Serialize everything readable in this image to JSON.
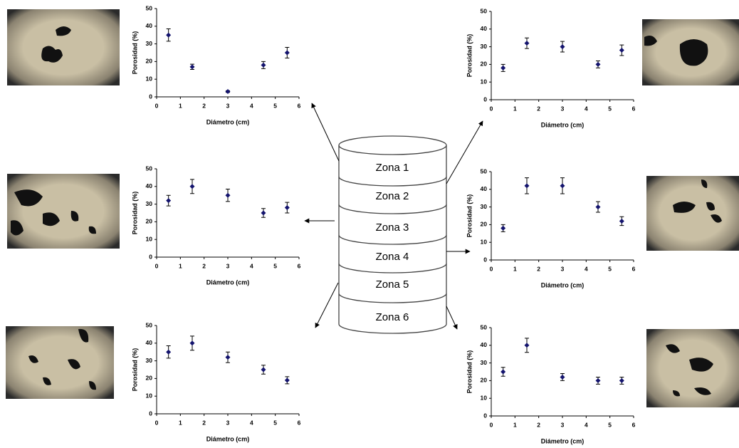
{
  "chart_data": [
    {
      "type": "scatter",
      "x_label": "Diámetro (cm)",
      "y_label": "Porosidad (%)",
      "color": "#14146e",
      "x": [
        0.5,
        1.5,
        3,
        4.5,
        5.5
      ],
      "values": [
        35,
        17,
        3,
        18,
        25
      ],
      "errors": [
        3.5,
        1.5,
        0.5,
        2,
        3
      ],
      "xlim": [
        0,
        6
      ],
      "xticks": [
        0,
        1,
        2,
        3,
        4,
        5,
        6
      ],
      "ylim": [
        0,
        50
      ],
      "yticks": [
        0,
        10,
        20,
        30,
        40,
        50
      ]
    },
    {
      "type": "scatter",
      "x_label": "Diámetro (cm)",
      "y_label": "Porosidad (%)",
      "color": "#14146e",
      "x": [
        0.5,
        1.5,
        3,
        4.5,
        5.5
      ],
      "values": [
        18,
        32,
        30,
        20,
        28
      ],
      "errors": [
        2,
        3,
        3,
        2,
        3
      ],
      "xlim": [
        0,
        6
      ],
      "xticks": [
        0,
        1,
        2,
        3,
        4,
        5,
        6
      ],
      "ylim": [
        0,
        50
      ],
      "yticks": [
        0,
        10,
        20,
        30,
        40,
        50
      ]
    },
    {
      "type": "scatter",
      "x_label": "Diámetro (cm)",
      "y_label": "Porosidad (%)",
      "color": "#14146e",
      "x": [
        0.5,
        1.5,
        3,
        4.5,
        5.5
      ],
      "values": [
        32,
        40,
        35,
        25,
        28
      ],
      "errors": [
        3,
        4,
        3.5,
        2.5,
        3
      ],
      "xlim": [
        0,
        6
      ],
      "xticks": [
        0,
        1,
        2,
        3,
        4,
        5,
        6
      ],
      "ylim": [
        0,
        50
      ],
      "yticks": [
        0,
        10,
        20,
        30,
        40,
        50
      ]
    },
    {
      "type": "scatter",
      "x_label": "Diámetro (cm)",
      "y_label": "Porosidad (%)",
      "color": "#14146e",
      "x": [
        0.5,
        1.5,
        3,
        4.5,
        5.5
      ],
      "values": [
        18,
        42,
        42,
        30,
        22
      ],
      "errors": [
        2,
        4.5,
        4.5,
        3,
        2.5
      ],
      "xlim": [
        0,
        6
      ],
      "xticks": [
        0,
        1,
        2,
        3,
        4,
        5,
        6
      ],
      "ylim": [
        0,
        50
      ],
      "yticks": [
        0,
        10,
        20,
        30,
        40,
        50
      ]
    },
    {
      "type": "scatter",
      "x_label": "Diámetro (cm)",
      "y_label": "Porosidad (%)",
      "color": "#14146e",
      "x": [
        0.5,
        1.5,
        3,
        4.5,
        5.5
      ],
      "values": [
        35,
        40,
        32,
        25,
        19
      ],
      "errors": [
        3.5,
        4,
        3,
        2.5,
        2
      ],
      "xlim": [
        0,
        6
      ],
      "xticks": [
        0,
        1,
        2,
        3,
        4,
        5,
        6
      ],
      "ylim": [
        0,
        50
      ],
      "yticks": [
        0,
        10,
        20,
        30,
        40,
        50
      ]
    },
    {
      "type": "scatter",
      "x_label": "Diámetro (cm)",
      "y_label": "Porosidad (%)",
      "color": "#14146e",
      "x": [
        0.5,
        1.5,
        3,
        4.5,
        5.5
      ],
      "values": [
        25,
        40,
        22,
        20,
        20
      ],
      "errors": [
        2.5,
        4,
        2,
        2,
        2
      ],
      "xlim": [
        0,
        6
      ],
      "xticks": [
        0,
        1,
        2,
        3,
        4,
        5,
        6
      ],
      "ylim": [
        0,
        50
      ],
      "yticks": [
        0,
        10,
        20,
        30,
        40,
        50
      ]
    }
  ],
  "diagram": {
    "zones": [
      "Zona 1",
      "Zona 2",
      "Zona 3",
      "Zona 4",
      "Zona 5",
      "Zona 6"
    ]
  }
}
